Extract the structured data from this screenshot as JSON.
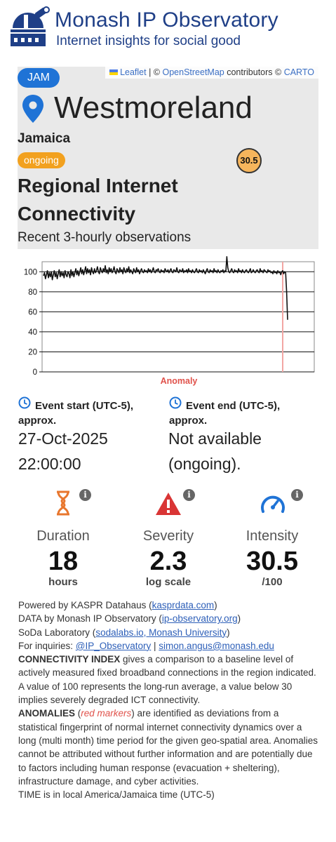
{
  "header": {
    "title": "Monash IP Observatory",
    "subtitle": "Internet insights for social good"
  },
  "map": {
    "attribution_leaflet": "Leaflet",
    "attribution_sep1": " | © ",
    "attribution_osm": "OpenStreetMap",
    "attribution_contrib": " contributors © ",
    "attribution_carto": "CARTO",
    "country_code": "JAM",
    "region": "Westmoreland",
    "country": "Jamaica",
    "status": "ongoing",
    "score": "30.5",
    "metric_title": "Regional Internet Connectivity",
    "metric_subtitle": "Recent 3-hourly observations"
  },
  "chart_data": {
    "type": "line",
    "title": "",
    "xlabel": "",
    "ylabel": "",
    "ylim": [
      0,
      110
    ],
    "yticks": [
      0,
      20,
      40,
      60,
      80,
      100
    ],
    "grid": true,
    "annotation": "Anomaly",
    "series": [
      {
        "values": [
          96,
          99,
          93,
          97,
          101,
          94,
          99,
          95,
          100,
          92,
          97,
          101,
          95,
          99,
          93,
          98,
          102,
          95,
          100,
          96,
          99,
          94,
          101,
          97,
          95,
          100,
          98,
          94,
          102,
          96,
          100,
          95,
          99,
          103,
          97,
          101,
          96,
          100,
          104,
          98,
          102,
          97,
          101,
          105,
          98,
          103,
          99,
          102,
          97,
          104,
          100,
          98,
          103,
          99,
          101,
          105,
          100,
          98,
          104,
          101,
          99,
          103,
          100,
          106,
          99,
          102,
          98,
          104,
          100,
          103,
          99,
          101,
          105,
          100,
          98,
          103,
          101,
          99,
          104,
          100,
          102,
          98,
          104,
          101,
          99,
          103,
          100,
          105,
          99,
          102,
          100,
          98,
          103,
          101,
          99,
          104,
          100,
          102,
          98,
          101,
          103,
          100,
          99,
          102,
          100,
          101,
          99,
          103,
          100,
          102,
          99,
          101,
          104,
          100,
          99,
          102,
          101,
          103,
          100,
          99,
          102,
          100,
          101,
          99,
          103,
          101,
          100,
          102,
          99,
          101,
          103,
          100,
          99,
          102,
          101,
          100,
          104,
          100,
          99,
          102,
          101,
          100,
          103,
          99,
          101,
          100,
          102,
          99,
          103,
          100,
          101,
          99,
          102,
          100,
          99,
          101,
          103,
          100,
          99,
          102,
          100,
          101,
          99,
          102,
          100,
          98,
          101,
          103,
          100,
          99,
          102,
          100,
          101,
          99,
          103,
          100,
          101,
          99,
          102,
          100,
          99,
          101,
          100,
          102,
          99,
          101,
          100,
          115,
          104,
          100,
          99,
          101,
          103,
          100,
          99,
          102,
          100,
          101,
          99,
          103,
          100,
          101,
          99,
          102,
          100,
          99,
          101,
          102,
          100,
          99,
          101,
          103,
          99,
          100,
          102,
          100,
          99,
          101,
          102,
          100,
          99,
          103,
          100,
          101,
          99,
          102,
          101,
          100,
          99,
          102,
          100,
          101,
          99,
          100,
          98,
          101,
          99,
          100,
          98,
          101,
          99,
          100,
          97,
          100,
          101,
          98,
          100,
          99,
          80,
          52
        ]
      }
    ],
    "anomaly_index": 244
  },
  "events": {
    "start_label": "Event start (UTC-5), approx.",
    "start_value": "27-Oct-2025 22:00:00",
    "end_label": "Event end (UTC-5), approx.",
    "end_value": "Not available (ongoing)."
  },
  "stats": {
    "duration": {
      "label": "Duration",
      "value": "18",
      "unit": "hours",
      "icon": "hourglass-icon"
    },
    "severity": {
      "label": "Severity",
      "value": "2.3",
      "unit": "log scale",
      "icon": "warning-icon"
    },
    "intensity": {
      "label": "Intensity",
      "value": "30.5",
      "unit": "/100",
      "icon": "gauge-icon"
    },
    "info_glyph": "i"
  },
  "footer": {
    "powered_prefix": "Powered by KASPR Datahaus (",
    "powered_link": "kasprdata.com",
    "powered_suffix": ")",
    "data_prefix": "DATA by Monash IP Observatory (",
    "data_link": "ip-observatory.org",
    "data_suffix": ")",
    "soda_prefix": "SoDa Laboratory (",
    "soda_link": "sodalabs.io, Monash University",
    "soda_suffix": ")",
    "inq_prefix": "For inquiries: ",
    "inq_link1": "@IP_Observatory",
    "inq_sep": " | ",
    "inq_link2": "simon.angus@monash.edu",
    "ci_bold": "CONNECTIVITY INDEX",
    "ci_text": " gives a comparison to a baseline level of actively measured fixed broadband connections in the region indicated. A value of 100 represents the long-run average, a value below 30 implies severely degraded ICT connectivity.",
    "an_bold": "ANOMALIES",
    "an_open": " (",
    "an_red": "red markers",
    "an_text": ") are identified as deviations from a statistical fingerprint of normal internet connectivity dynamics over a long (multi month) time period for the given geo-spatial area. Anomalies cannot be attributed without further information and are potentially due to factors including human response (evacuation + sheltering), infrastructure damage, and cyber activities.",
    "time_text": "TIME is in local America/Jamaica time (UTC-5)"
  },
  "colors": {
    "brand": "#1f3f87",
    "badge_blue": "#1f73d6",
    "ongoing": "#f2a11f",
    "anomaly": "#e0524b",
    "hourglass": "#e8772e",
    "warning": "#d93535",
    "gauge": "#1f73d6"
  }
}
